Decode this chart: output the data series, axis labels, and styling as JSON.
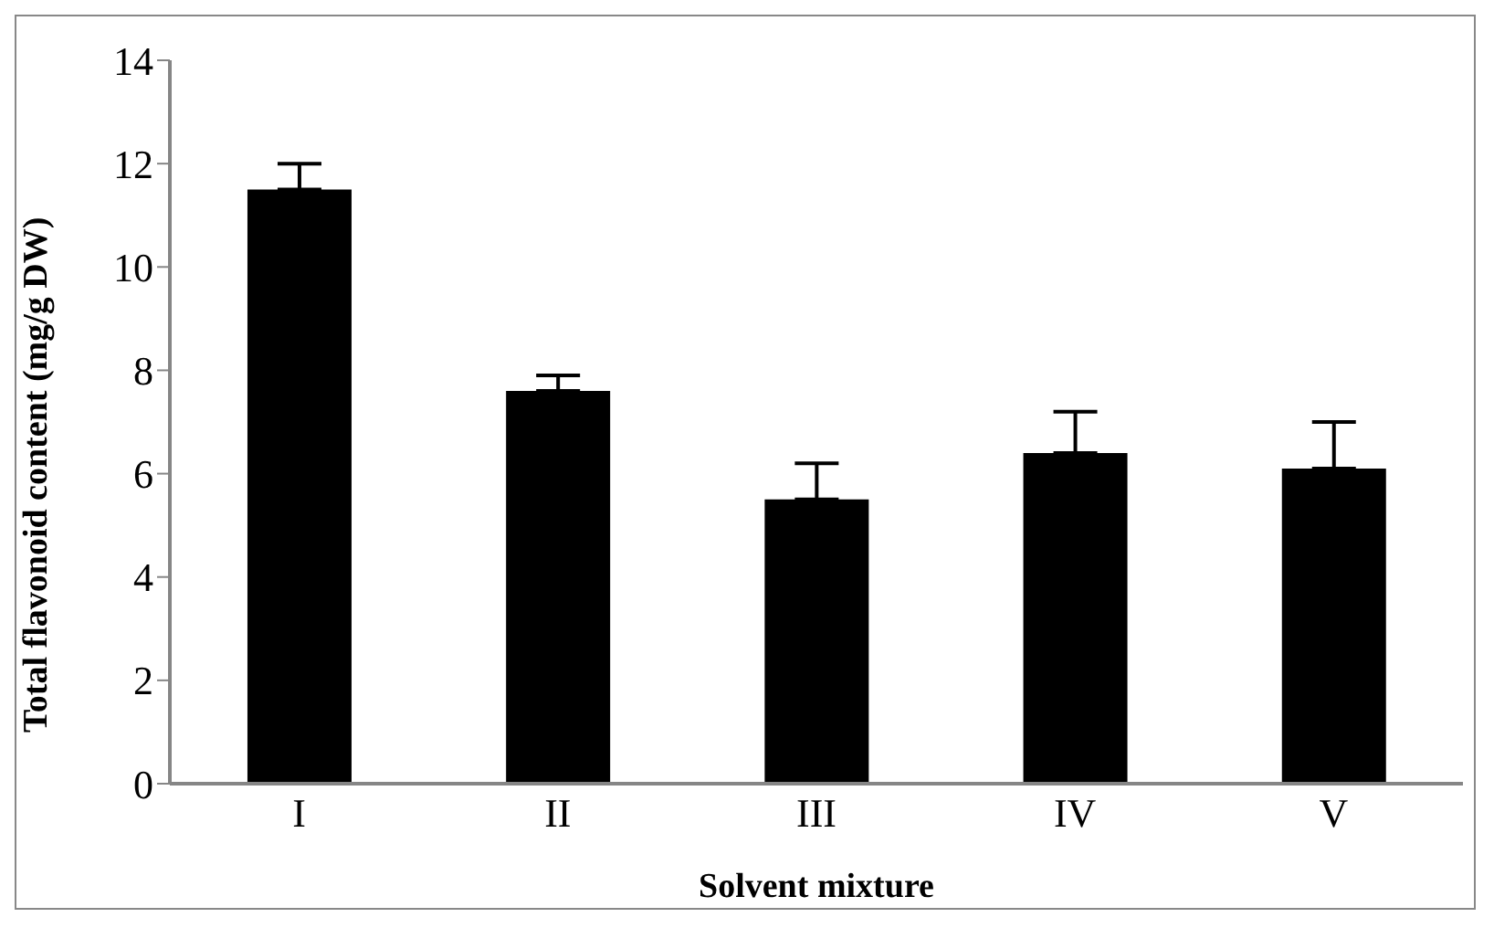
{
  "chart_data": {
    "type": "bar",
    "xlabel": "Solvent mixture",
    "ylabel": "Total flavonoid content (mg/g DW)",
    "categories": [
      "I",
      "II",
      "III",
      "IV",
      "V"
    ],
    "values": [
      11.5,
      7.6,
      5.5,
      6.4,
      6.1
    ],
    "errors": [
      [
        11.5,
        12.0
      ],
      [
        7.6,
        7.9
      ],
      [
        5.5,
        6.2
      ],
      [
        6.4,
        7.2
      ],
      [
        6.1,
        7.0
      ]
    ],
    "color": "#000000",
    "ylim": [
      0,
      14
    ],
    "yticks": [
      0,
      2,
      4,
      6,
      8,
      10,
      12,
      14
    ],
    "grid": false,
    "legend": false
  }
}
